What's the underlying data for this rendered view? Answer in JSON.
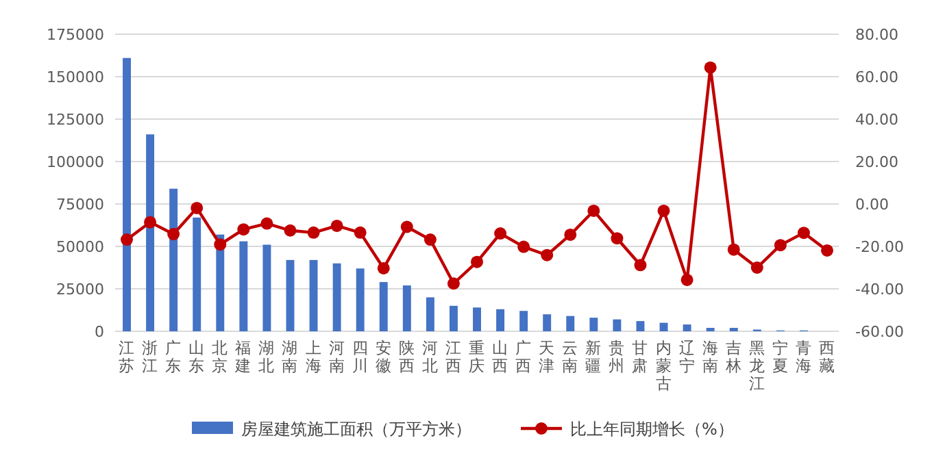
{
  "chart_data": {
    "type": "bar",
    "categories": [
      "江苏",
      "浙江",
      "广东",
      "山东",
      "北京",
      "福建",
      "湖北",
      "湖南",
      "上海",
      "河南",
      "四川",
      "安徽",
      "陕西",
      "河北",
      "江西",
      "重庆",
      "山西",
      "广西",
      "天津",
      "云南",
      "新疆",
      "贵州",
      "甘肃",
      "内蒙古",
      "辽宁",
      "海南",
      "吉林",
      "黑龙江",
      "宁夏",
      "青海",
      "西藏"
    ],
    "series": [
      {
        "name": "房屋建筑施工面积（万平方米）",
        "color": "#4472c4",
        "values": [
          161000,
          116000,
          84000,
          67000,
          57000,
          53000,
          51000,
          42000,
          42000,
          40000,
          37000,
          29000,
          27000,
          20000,
          15000,
          14000,
          13000,
          12000,
          10000,
          9000,
          8000,
          7000,
          6000,
          5000,
          4000,
          2000,
          2000,
          1000,
          500,
          500,
          0
        ]
      },
      {
        "name": "比上年同期增长（%）",
        "type": "line",
        "axis": "y2",
        "color": "#c00000",
        "marker": "circle",
        "values": [
          -16.8,
          -8.6,
          -14.2,
          -1.9,
          -19.1,
          -12.0,
          -9.2,
          -12.5,
          -13.5,
          -10.3,
          -13.5,
          -30.3,
          -10.8,
          -16.8,
          -37.5,
          -27.3,
          -13.9,
          -20.2,
          -24.1,
          -14.5,
          -3.2,
          -16.2,
          -28.8,
          -3.2,
          -35.8,
          64.3,
          -21.5,
          -30.0,
          -19.4,
          -13.6,
          -21.9
        ]
      }
    ],
    "ylim": [
      0,
      175000
    ],
    "yticks": [
      0,
      25000,
      50000,
      75000,
      100000,
      125000,
      150000,
      175000
    ],
    "y2lim": [
      -60,
      80
    ],
    "y2ticks": [
      {
        "value": -60,
        "label": "-60.00"
      },
      {
        "value": -40,
        "label": "-40.00"
      },
      {
        "value": -20,
        "label": "-20.00"
      },
      {
        "value": 0,
        "label": "0.00"
      },
      {
        "value": 20,
        "label": "20.00"
      },
      {
        "value": 40,
        "label": "40.00"
      },
      {
        "value": 60,
        "label": "60.00"
      },
      {
        "value": 80,
        "label": "80.00"
      }
    ],
    "grid": "y",
    "legend": "bottom"
  }
}
